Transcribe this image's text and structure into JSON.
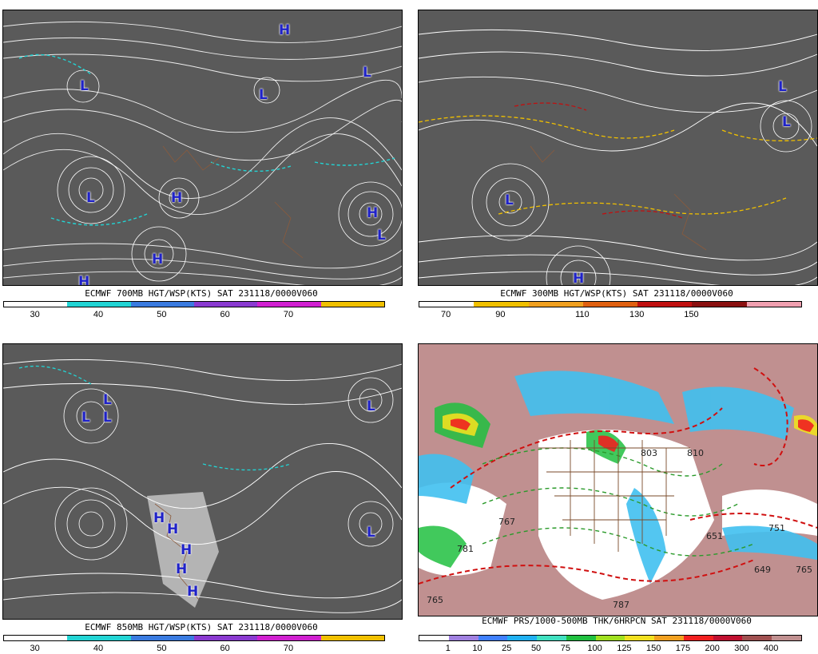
{
  "panels": [
    {
      "id": "700mb",
      "title": "ECMWF 700MB HGT/WSP(KTS) SAT 231118/0000V060",
      "colorbar": {
        "colors": [
          "#ffffff",
          "#22d4d4",
          "#3a7be0",
          "#8a3ad0",
          "#d020d0",
          "#f0c000"
        ],
        "labels": [
          "30",
          "40",
          "50",
          "60",
          "70"
        ]
      },
      "centers": [
        "H",
        "L",
        "L",
        "L",
        "H",
        "L",
        "H",
        "H",
        "L",
        "H"
      ]
    },
    {
      "id": "300mb",
      "title": "ECMWF 300MB HGT/WSP(KTS) SAT 231118/0000V060",
      "colorbar": {
        "colors": [
          "#ffffff",
          "#f0c000",
          "#f0a020",
          "#e06010",
          "#c01010",
          "#8a1010",
          "#f0a0b0"
        ],
        "labels": [
          "70",
          "90",
          "110",
          "130",
          "150"
        ]
      },
      "centers": [
        "L",
        "L",
        "L",
        "H"
      ]
    },
    {
      "id": "850mb",
      "title": "ECMWF 850MB HGT/WSP(KTS) SAT 231118/0000V060",
      "colorbar": {
        "colors": [
          "#ffffff",
          "#22d4d4",
          "#3a7be0",
          "#8a3ad0",
          "#d020d0",
          "#f0c000"
        ],
        "labels": [
          "30",
          "40",
          "50",
          "60",
          "70"
        ]
      },
      "centers": [
        "L",
        "L",
        "L",
        "L",
        "H",
        "H",
        "H",
        "H",
        "H",
        "L"
      ]
    },
    {
      "id": "prs",
      "title": "ECMWF PRS/1000-500MB THK/6HRPCN SAT 231118/0000V060",
      "colorbar": {
        "colors": [
          "#ffffff",
          "#a080e0",
          "#4080ff",
          "#20b0f0",
          "#40e0c0",
          "#20c040",
          "#a0e020",
          "#f0e020",
          "#f0a020",
          "#f02020",
          "#c01030",
          "#a05050",
          "#c09090"
        ],
        "labels": [
          "1",
          "10",
          "25",
          "50",
          "75",
          "100",
          "125",
          "150",
          "175",
          "200",
          "300",
          "400"
        ]
      },
      "values": [
        "803",
        "810",
        "767",
        "781",
        "651",
        "751",
        "649",
        "765",
        "787",
        "765"
      ]
    }
  ]
}
